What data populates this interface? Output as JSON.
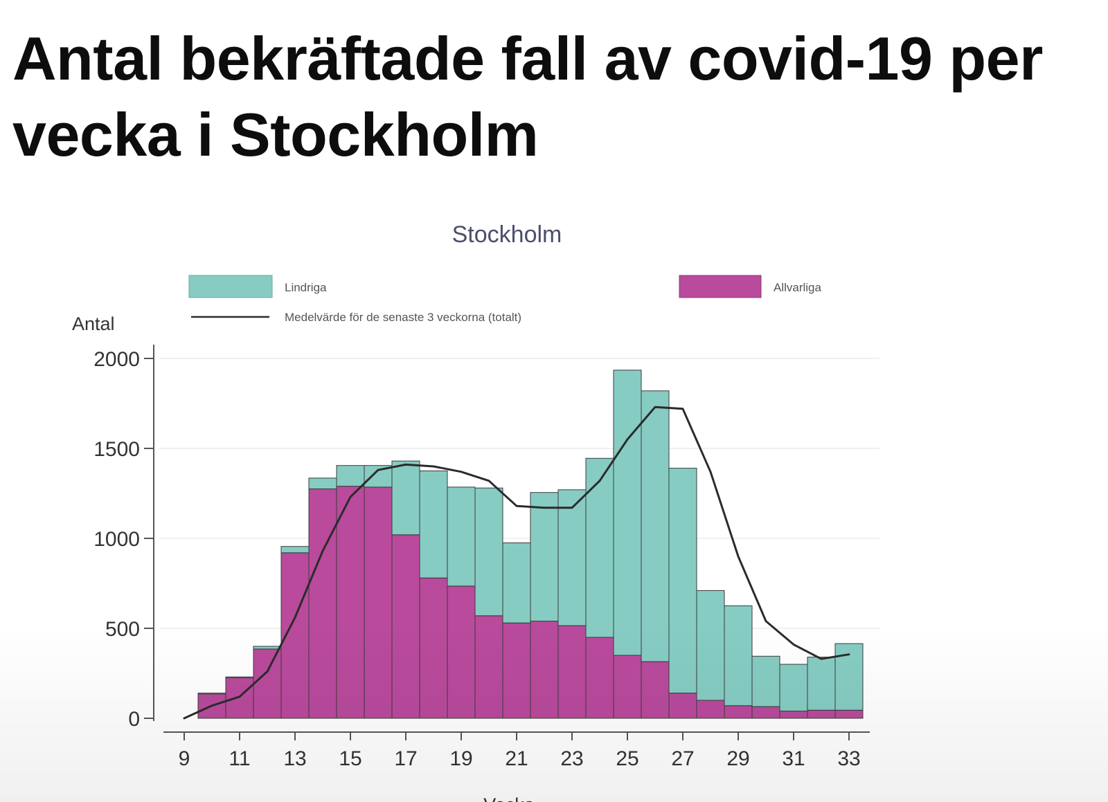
{
  "slide": {
    "title_line1": "Antal bekräftade fall av covid-19 per",
    "title_line2": "vecka i Stockholm"
  },
  "chart_data": {
    "type": "bar",
    "stacked": true,
    "title": "Stockholm",
    "xlabel": "Vecka",
    "ylabel": "Antal",
    "ylim": [
      0,
      2000
    ],
    "yticks": [
      0,
      500,
      1000,
      1500,
      2000
    ],
    "xticks": [
      9,
      11,
      13,
      15,
      17,
      19,
      21,
      23,
      25,
      27,
      29,
      31,
      33
    ],
    "grid": "horizontal",
    "legend_position": "top",
    "categories": [
      9,
      10,
      11,
      12,
      13,
      14,
      15,
      16,
      17,
      18,
      19,
      20,
      21,
      22,
      23,
      24,
      25,
      26,
      27,
      28,
      29,
      30,
      31,
      32,
      33
    ],
    "series": [
      {
        "name": "Allvarliga",
        "color": "#b94a9c",
        "values": [
          0,
          135,
          225,
          385,
          920,
          1275,
          1290,
          1285,
          1020,
          780,
          735,
          570,
          530,
          540,
          515,
          450,
          350,
          315,
          140,
          100,
          70,
          65,
          40,
          45,
          45
        ]
      },
      {
        "name": "Lindriga",
        "color": "#86ccc3",
        "values": [
          0,
          5,
          5,
          15,
          35,
          60,
          115,
          120,
          410,
          595,
          550,
          710,
          445,
          715,
          755,
          995,
          1585,
          1505,
          1250,
          610,
          555,
          280,
          260,
          295,
          370
        ]
      }
    ],
    "line": {
      "name": "Medelvärde för de senaste 3 veckorna (totalt)",
      "color": "#2b2b2b",
      "values": [
        0,
        70,
        120,
        260,
        560,
        930,
        1230,
        1380,
        1410,
        1400,
        1370,
        1320,
        1180,
        1170,
        1170,
        1320,
        1550,
        1730,
        1720,
        1370,
        900,
        540,
        410,
        330,
        355
      ]
    }
  }
}
